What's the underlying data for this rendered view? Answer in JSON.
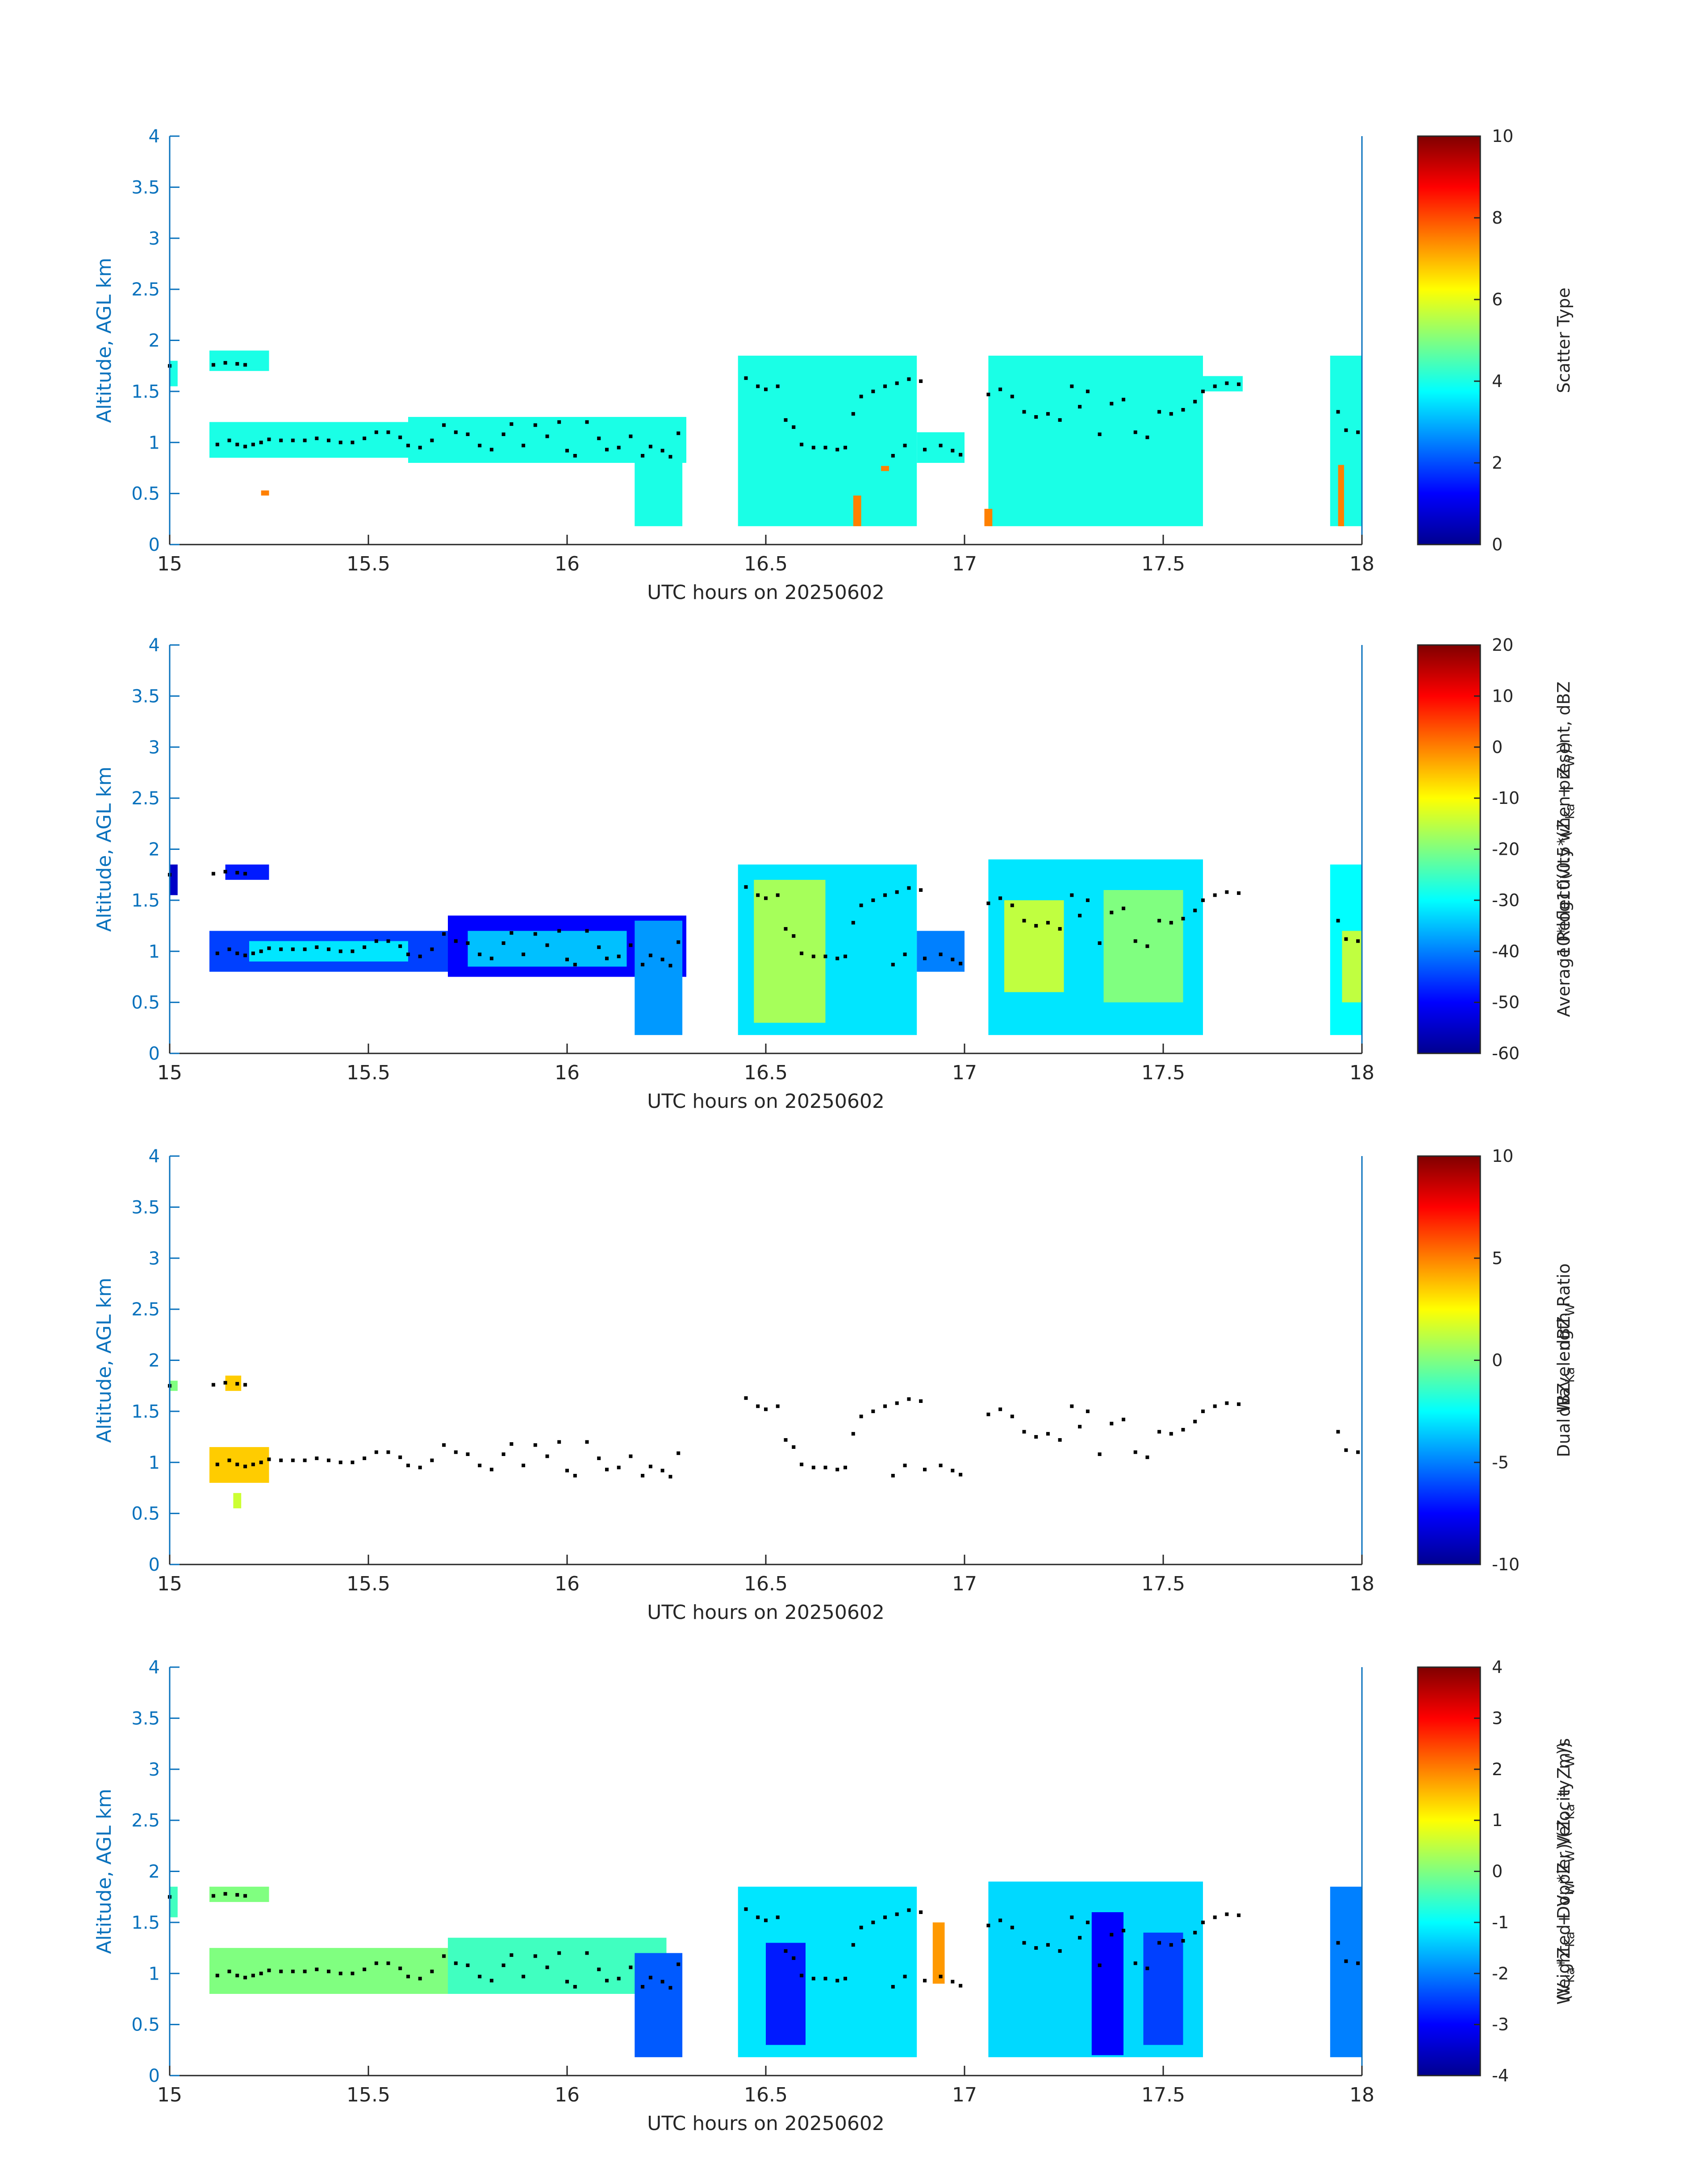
{
  "figure": {
    "panels_count": 4
  },
  "colormap": [
    "#00008f",
    "#0000ff",
    "#0080ff",
    "#00ffff",
    "#80ff80",
    "#ffff00",
    "#ff8000",
    "#ff0000",
    "#800000"
  ],
  "chart_data": [
    {
      "type": "heatmap",
      "name": "scatter-type",
      "xlabel": "UTC hours on 20250602",
      "ylabel": "Altitude, AGL km",
      "xlim": [
        15,
        18
      ],
      "ylim": [
        0,
        4
      ],
      "xticks": [
        "15",
        "15.5",
        "16",
        "16.5",
        "17",
        "17.5",
        "18"
      ],
      "yticks": [
        "0",
        "0.5",
        "1",
        "1.5",
        "2",
        "2.5",
        "3",
        "3.5",
        "4"
      ],
      "colorbar": {
        "label_lines": [
          "Scatter Type"
        ],
        "range": [
          0,
          10
        ],
        "ticks": [
          "0",
          "2",
          "4",
          "6",
          "8",
          "10"
        ]
      },
      "regions": [
        {
          "x": [
            15.0,
            15.02
          ],
          "y": [
            1.55,
            1.8
          ],
          "value": 4
        },
        {
          "x": [
            15.1,
            15.25
          ],
          "y": [
            1.7,
            1.9
          ],
          "value": 4
        },
        {
          "x": [
            15.1,
            15.6
          ],
          "y": [
            0.85,
            1.2
          ],
          "value": 4
        },
        {
          "x": [
            15.6,
            16.3
          ],
          "y": [
            0.8,
            1.25
          ],
          "value": 4
        },
        {
          "x": [
            16.17,
            16.29
          ],
          "y": [
            0.18,
            1.0
          ],
          "value": 4
        },
        {
          "x": [
            16.43,
            16.88
          ],
          "y": [
            0.18,
            1.85
          ],
          "value": 4
        },
        {
          "x": [
            16.88,
            17.0
          ],
          "y": [
            0.8,
            1.1
          ],
          "value": 4
        },
        {
          "x": [
            17.06,
            17.6
          ],
          "y": [
            0.18,
            1.85
          ],
          "value": 4
        },
        {
          "x": [
            17.6,
            17.7
          ],
          "y": [
            1.5,
            1.65
          ],
          "value": 4
        },
        {
          "x": [
            17.92,
            18.0
          ],
          "y": [
            0.18,
            1.85
          ],
          "value": 4
        },
        {
          "x": [
            15.23,
            15.25
          ],
          "y": [
            0.48,
            0.53
          ],
          "value": 7.5
        },
        {
          "x": [
            16.72,
            16.74
          ],
          "y": [
            0.18,
            0.48
          ],
          "value": 7.5
        },
        {
          "x": [
            16.79,
            16.81
          ],
          "y": [
            0.72,
            0.77
          ],
          "value": 7.5
        },
        {
          "x": [
            17.05,
            17.07
          ],
          "y": [
            0.18,
            0.35
          ],
          "value": 7.5
        },
        {
          "x": [
            17.94,
            17.955
          ],
          "y": [
            0.18,
            0.78
          ],
          "value": 7.5
        }
      ]
    },
    {
      "type": "heatmap",
      "name": "reflectivity",
      "xlabel": "UTC hours on 20250602",
      "ylabel": "Altitude, AGL km",
      "xlim": [
        15,
        18
      ],
      "ylim": [
        0,
        4
      ],
      "xticks": [
        "15",
        "15.5",
        "16",
        "16.5",
        "17",
        "17.5",
        "18"
      ],
      "yticks": [
        "0",
        "0.5",
        "1",
        "1.5",
        "2",
        "2.5",
        "3",
        "3.5",
        "4"
      ],
      "colorbar": {
        "label_lines": [
          "Average Reflectivity when present, dBZ",
          "10*log10(0.5*(Z",
          "Ka",
          " + Z",
          "W",
          "))"
        ],
        "range": [
          -60,
          20
        ],
        "ticks": [
          "-60",
          "-50",
          "-40",
          "-30",
          "-20",
          "-10",
          "0",
          "10",
          "20"
        ]
      },
      "regions": [
        {
          "x": [
            15.0,
            15.02
          ],
          "y": [
            1.55,
            1.85
          ],
          "value": -55
        },
        {
          "x": [
            15.14,
            15.25
          ],
          "y": [
            1.7,
            1.85
          ],
          "value": -48
        },
        {
          "x": [
            15.1,
            15.7
          ],
          "y": [
            0.8,
            1.2
          ],
          "value": -45
        },
        {
          "x": [
            15.2,
            15.6
          ],
          "y": [
            0.9,
            1.1
          ],
          "value": -32
        },
        {
          "x": [
            15.7,
            16.3
          ],
          "y": [
            0.75,
            1.35
          ],
          "value": -50
        },
        {
          "x": [
            15.75,
            16.15
          ],
          "y": [
            0.85,
            1.2
          ],
          "value": -35
        },
        {
          "x": [
            16.17,
            16.29
          ],
          "y": [
            0.18,
            1.3
          ],
          "value": -38
        },
        {
          "x": [
            16.43,
            16.88
          ],
          "y": [
            0.18,
            1.85
          ],
          "value": -32
        },
        {
          "x": [
            16.47,
            16.65
          ],
          "y": [
            0.3,
            1.7
          ],
          "value": -17
        },
        {
          "x": [
            16.88,
            17.0
          ],
          "y": [
            0.8,
            1.2
          ],
          "value": -40
        },
        {
          "x": [
            17.06,
            17.6
          ],
          "y": [
            0.18,
            1.9
          ],
          "value": -32
        },
        {
          "x": [
            17.1,
            17.25
          ],
          "y": [
            0.6,
            1.5
          ],
          "value": -15
        },
        {
          "x": [
            17.35,
            17.55
          ],
          "y": [
            0.5,
            1.6
          ],
          "value": -20
        },
        {
          "x": [
            17.92,
            18.0
          ],
          "y": [
            0.18,
            1.85
          ],
          "value": -30
        },
        {
          "x": [
            17.95,
            18.0
          ],
          "y": [
            0.5,
            1.2
          ],
          "value": -15
        }
      ]
    },
    {
      "type": "heatmap",
      "name": "dual-wavelength-ratio",
      "xlabel": "UTC hours on 20250602",
      "ylabel": "Altitude, AGL km",
      "xlim": [
        15,
        18
      ],
      "ylim": [
        0,
        4
      ],
      "xticks": [
        "15",
        "15.5",
        "16",
        "16.5",
        "17",
        "17.5",
        "18"
      ],
      "yticks": [
        "0",
        "0.5",
        "1",
        "1.5",
        "2",
        "2.5",
        "3",
        "3.5",
        "4"
      ],
      "colorbar": {
        "label_lines": [
          "Dual Wavelength Ratio",
          "dBZ",
          "Ka",
          " - dBZ",
          "W"
        ],
        "range": [
          -10,
          10
        ],
        "ticks": [
          "-10",
          "-5",
          "0",
          "5",
          "10"
        ]
      },
      "regions": [
        {
          "x": [
            15.0,
            15.02
          ],
          "y": [
            1.7,
            1.8
          ],
          "value": 0
        },
        {
          "x": [
            15.14,
            15.18
          ],
          "y": [
            1.7,
            1.85
          ],
          "value": 3.5
        },
        {
          "x": [
            15.1,
            15.25
          ],
          "y": [
            0.8,
            1.15
          ],
          "value": 3.5
        },
        {
          "x": [
            15.16,
            15.18
          ],
          "y": [
            0.55,
            0.7
          ],
          "value": 1.5
        }
      ]
    },
    {
      "type": "heatmap",
      "name": "doppler-velocity",
      "xlabel": "UTC hours on 20250602",
      "ylabel": "Altitude, AGL km",
      "xlim": [
        15,
        18
      ],
      "ylim": [
        0,
        4
      ],
      "xticks": [
        "15",
        "15.5",
        "16",
        "16.5",
        "17",
        "17.5",
        "18"
      ],
      "yticks": [
        "0",
        "0.5",
        "1",
        "1.5",
        "2",
        "2.5",
        "3",
        "3.5",
        "4"
      ],
      "colorbar": {
        "label_lines": [
          "Weighted Doppler Velocity, m/s",
          "(V",
          "Ka",
          "*Z",
          "Ka",
          " + V",
          "W",
          "*Z",
          "W",
          ")/(Z",
          "Ka",
          " + Z",
          "W",
          "))"
        ],
        "range": [
          -4,
          4
        ],
        "ticks": [
          "-4",
          "-3",
          "-2",
          "-1",
          "0",
          "1",
          "2",
          "3",
          "4"
        ]
      },
      "regions": [
        {
          "x": [
            15.0,
            15.02
          ],
          "y": [
            1.55,
            1.85
          ],
          "value": -0.5
        },
        {
          "x": [
            15.1,
            15.25
          ],
          "y": [
            1.7,
            1.85
          ],
          "value": 0
        },
        {
          "x": [
            15.1,
            15.7
          ],
          "y": [
            0.8,
            1.25
          ],
          "value": 0
        },
        {
          "x": [
            15.7,
            16.25
          ],
          "y": [
            0.8,
            1.35
          ],
          "value": -0.5
        },
        {
          "x": [
            16.17,
            16.29
          ],
          "y": [
            0.18,
            1.2
          ],
          "value": -2.3
        },
        {
          "x": [
            16.43,
            16.88
          ],
          "y": [
            0.18,
            1.85
          ],
          "value": -1.2
        },
        {
          "x": [
            16.5,
            16.6
          ],
          "y": [
            0.3,
            1.3
          ],
          "value": -2.8
        },
        {
          "x": [
            16.92,
            16.95
          ],
          "y": [
            0.9,
            1.5
          ],
          "value": 1.8
        },
        {
          "x": [
            17.06,
            17.6
          ],
          "y": [
            0.18,
            1.9
          ],
          "value": -1.3
        },
        {
          "x": [
            17.32,
            17.4
          ],
          "y": [
            0.2,
            1.6
          ],
          "value": -3
        },
        {
          "x": [
            17.45,
            17.55
          ],
          "y": [
            0.3,
            1.4
          ],
          "value": -2.5
        },
        {
          "x": [
            17.92,
            18.0
          ],
          "y": [
            0.18,
            1.85
          ],
          "value": -2
        }
      ]
    }
  ],
  "cloud_base_points": [
    [
      15.0,
      1.75
    ],
    [
      15.11,
      1.76
    ],
    [
      15.14,
      1.78
    ],
    [
      15.17,
      1.77
    ],
    [
      15.19,
      1.76
    ],
    [
      15.12,
      0.98
    ],
    [
      15.15,
      1.02
    ],
    [
      15.17,
      0.98
    ],
    [
      15.19,
      0.96
    ],
    [
      15.21,
      0.98
    ],
    [
      15.23,
      1.0
    ],
    [
      15.25,
      1.03
    ],
    [
      15.28,
      1.02
    ],
    [
      15.31,
      1.02
    ],
    [
      15.34,
      1.02
    ],
    [
      15.37,
      1.04
    ],
    [
      15.4,
      1.02
    ],
    [
      15.43,
      1.0
    ],
    [
      15.46,
      1.0
    ],
    [
      15.49,
      1.04
    ],
    [
      15.52,
      1.1
    ],
    [
      15.55,
      1.1
    ],
    [
      15.58,
      1.05
    ],
    [
      15.6,
      0.97
    ],
    [
      15.63,
      0.95
    ],
    [
      15.66,
      1.02
    ],
    [
      15.69,
      1.17
    ],
    [
      15.72,
      1.1
    ],
    [
      15.75,
      1.08
    ],
    [
      15.78,
      0.97
    ],
    [
      15.81,
      0.93
    ],
    [
      15.84,
      1.08
    ],
    [
      15.86,
      1.18
    ],
    [
      15.89,
      0.97
    ],
    [
      15.92,
      1.17
    ],
    [
      15.95,
      1.06
    ],
    [
      15.98,
      1.2
    ],
    [
      16.0,
      0.92
    ],
    [
      16.02,
      0.87
    ],
    [
      16.05,
      1.2
    ],
    [
      16.08,
      1.04
    ],
    [
      16.1,
      0.93
    ],
    [
      16.13,
      0.95
    ],
    [
      16.16,
      1.06
    ],
    [
      16.19,
      0.87
    ],
    [
      16.21,
      0.96
    ],
    [
      16.24,
      0.92
    ],
    [
      16.26,
      0.86
    ],
    [
      16.28,
      1.09
    ],
    [
      16.45,
      1.63
    ],
    [
      16.48,
      1.55
    ],
    [
      16.5,
      1.52
    ],
    [
      16.53,
      1.55
    ],
    [
      16.55,
      1.22
    ],
    [
      16.57,
      1.15
    ],
    [
      16.59,
      0.98
    ],
    [
      16.62,
      0.95
    ],
    [
      16.65,
      0.95
    ],
    [
      16.68,
      0.93
    ],
    [
      16.7,
      0.95
    ],
    [
      16.72,
      1.28
    ],
    [
      16.74,
      1.45
    ],
    [
      16.77,
      1.5
    ],
    [
      16.8,
      1.55
    ],
    [
      16.83,
      1.58
    ],
    [
      16.86,
      1.62
    ],
    [
      16.89,
      1.6
    ],
    [
      16.82,
      0.87
    ],
    [
      16.85,
      0.97
    ],
    [
      16.9,
      0.93
    ],
    [
      16.94,
      0.97
    ],
    [
      16.97,
      0.92
    ],
    [
      16.99,
      0.88
    ],
    [
      17.06,
      1.47
    ],
    [
      17.09,
      1.52
    ],
    [
      17.12,
      1.45
    ],
    [
      17.15,
      1.3
    ],
    [
      17.18,
      1.25
    ],
    [
      17.21,
      1.28
    ],
    [
      17.24,
      1.22
    ],
    [
      17.27,
      1.55
    ],
    [
      17.29,
      1.35
    ],
    [
      17.31,
      1.5
    ],
    [
      17.34,
      1.08
    ],
    [
      17.37,
      1.38
    ],
    [
      17.4,
      1.42
    ],
    [
      17.43,
      1.1
    ],
    [
      17.46,
      1.05
    ],
    [
      17.49,
      1.3
    ],
    [
      17.52,
      1.28
    ],
    [
      17.55,
      1.32
    ],
    [
      17.58,
      1.4
    ],
    [
      17.6,
      1.5
    ],
    [
      17.63,
      1.55
    ],
    [
      17.66,
      1.58
    ],
    [
      17.69,
      1.57
    ],
    [
      17.94,
      1.3
    ],
    [
      17.96,
      1.12
    ],
    [
      17.99,
      1.1
    ]
  ]
}
